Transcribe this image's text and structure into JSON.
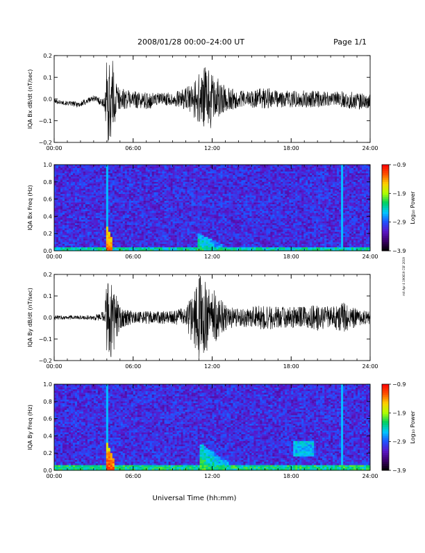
{
  "header": {
    "title": "2008/01/28  00:00–24:00 UT",
    "page": "Page 1/1"
  },
  "footer": {
    "xlabel": "Universal Time (hh:mm)",
    "stamp": "mit Apr 4 190619 CSF 2019"
  },
  "colors": {
    "trace": "#000000",
    "colormap": [
      "#000000",
      "#3a0066",
      "#5a16c8",
      "#2050ff",
      "#00c8ff",
      "#00d060",
      "#b0ff00",
      "#ffd000",
      "#ff5000",
      "#ff0000"
    ]
  },
  "chart_data": [
    {
      "type": "line",
      "ylabel": "IQA Bx dB/dt (nT/sec)",
      "xlim": [
        0,
        24
      ],
      "ylim": [
        -0.2,
        0.2
      ],
      "xticks": [
        "00:00",
        "06:00",
        "12:00",
        "18:00",
        "24:00"
      ],
      "yticks": [
        "0.2",
        "0.1",
        "0.0",
        "−0.1",
        "−0.2"
      ],
      "envelope": {
        "x": [
          0,
          1,
          2,
          3,
          3.8,
          4.0,
          4.4,
          4.6,
          5,
          6,
          7,
          8,
          9,
          10,
          10.5,
          11,
          11.5,
          12,
          12.5,
          13,
          14,
          15,
          16,
          17,
          18,
          19,
          20,
          21,
          22,
          23,
          24
        ],
        "center": [
          -0.01,
          -0.02,
          -0.025,
          0.005,
          -0.02,
          -0.01,
          -0.01,
          0,
          0,
          0,
          -0.01,
          0,
          0,
          0,
          0,
          0,
          0,
          0,
          0,
          0,
          0,
          0,
          0.005,
          0,
          0,
          0,
          0,
          0,
          0,
          -0.01,
          -0.01
        ],
        "amplitude": [
          0.01,
          0.01,
          0.015,
          0.015,
          0.02,
          0.2,
          0.2,
          0.12,
          0.05,
          0.04,
          0.04,
          0.03,
          0.03,
          0.05,
          0.08,
          0.12,
          0.15,
          0.13,
          0.09,
          0.06,
          0.04,
          0.04,
          0.05,
          0.04,
          0.04,
          0.04,
          0.04,
          0.03,
          0.04,
          0.04,
          0.03
        ]
      }
    },
    {
      "type": "heatmap",
      "ylabel": "IQA Bx Freq (Hz)",
      "colorbar_label": "Log₁₀ Power",
      "xlim": [
        0,
        24
      ],
      "ylim": [
        0,
        1.0
      ],
      "xticks": [
        "00:00",
        "06:00",
        "12:00",
        "18:00",
        "24:00"
      ],
      "yticks": [
        "1.0",
        "0.8",
        "0.6",
        "0.4",
        "0.2",
        "0.0"
      ],
      "colorbar_ticks": [
        "−0.9",
        "−1.9",
        "−2.9",
        "−3.9"
      ],
      "crange": [
        -3.9,
        -0.9
      ],
      "features": [
        {
          "kind": "band",
          "x0": 0,
          "x1": 24,
          "fmax": 0.05,
          "level": -2.4
        },
        {
          "kind": "burst",
          "t": 4.1,
          "width": 0.4,
          "fmax": 0.25,
          "level": -1.2
        },
        {
          "kind": "burst",
          "t": 11.0,
          "width": 2.5,
          "fmax": 0.2,
          "level": -2.2
        },
        {
          "kind": "line",
          "t": 4.0,
          "level": -2.6
        },
        {
          "kind": "line",
          "t": 21.9,
          "level": -2.6
        }
      ]
    },
    {
      "type": "line",
      "ylabel": "IQA By dB/dt (nT/sec)",
      "xlim": [
        0,
        24
      ],
      "ylim": [
        -0.2,
        0.2
      ],
      "xticks": [
        "00:00",
        "06:00",
        "12:00",
        "18:00",
        "24:00"
      ],
      "yticks": [
        "0.2",
        "0.1",
        "0.0",
        "−0.1",
        "−0.2"
      ],
      "envelope": {
        "x": [
          0,
          1,
          2,
          3,
          3.8,
          4.0,
          4.4,
          4.6,
          5,
          6,
          7,
          8,
          9,
          10,
          10.5,
          11,
          11.5,
          12,
          12.5,
          13,
          14,
          15,
          16,
          17,
          18,
          19,
          20,
          21,
          22,
          23,
          24
        ],
        "center": [
          0,
          0,
          0,
          0,
          0,
          0,
          0,
          0,
          0,
          0,
          0,
          0,
          0,
          0,
          0,
          0,
          0,
          0,
          0,
          0,
          0,
          0,
          0,
          0,
          0,
          0,
          0,
          0,
          0,
          0,
          0
        ],
        "amplitude": [
          0.01,
          0.01,
          0.01,
          0.012,
          0.03,
          0.2,
          0.2,
          0.13,
          0.05,
          0.03,
          0.03,
          0.03,
          0.03,
          0.05,
          0.12,
          0.2,
          0.17,
          0.14,
          0.1,
          0.06,
          0.04,
          0.05,
          0.06,
          0.05,
          0.05,
          0.05,
          0.06,
          0.05,
          0.07,
          0.04,
          0.03
        ]
      }
    },
    {
      "type": "heatmap",
      "ylabel": "IQA By Freq (Hz)",
      "colorbar_label": "Log₁₀ Power",
      "xlim": [
        0,
        24
      ],
      "ylim": [
        0,
        1.0
      ],
      "xticks": [
        "00:00",
        "06:00",
        "12:00",
        "18:00",
        "24:00"
      ],
      "yticks": [
        "1.0",
        "0.8",
        "0.6",
        "0.4",
        "0.2",
        "0.0"
      ],
      "colorbar_ticks": [
        "−0.9",
        "−1.9",
        "−2.9",
        "−3.9"
      ],
      "crange": [
        -3.9,
        -0.9
      ],
      "features": [
        {
          "kind": "band",
          "x0": 0,
          "x1": 24,
          "fmax": 0.06,
          "level": -2.3
        },
        {
          "kind": "burst",
          "t": 4.1,
          "width": 0.5,
          "fmax": 0.3,
          "level": -1.1
        },
        {
          "kind": "burst",
          "t": 11.2,
          "width": 2.8,
          "fmax": 0.3,
          "level": -2.0
        },
        {
          "kind": "blob",
          "t": 19.0,
          "f": 0.25,
          "width": 0.8,
          "level": -2.6
        },
        {
          "kind": "line",
          "t": 4.0,
          "level": -2.6
        },
        {
          "kind": "line",
          "t": 21.9,
          "level": -2.6
        }
      ]
    }
  ]
}
